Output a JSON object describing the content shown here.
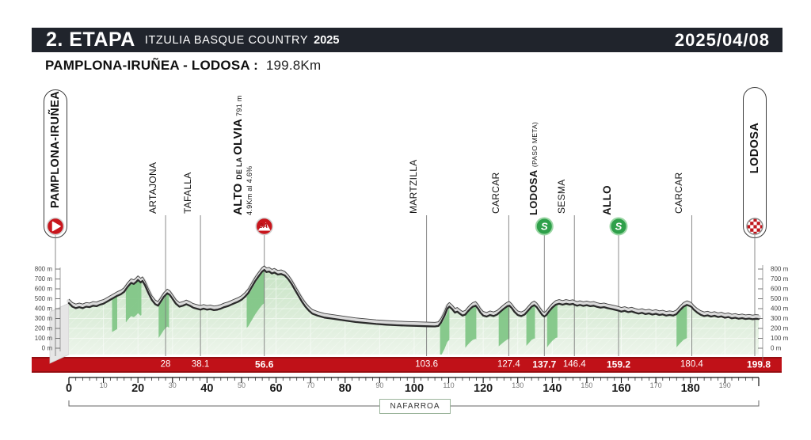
{
  "header": {
    "stage": "2. ETAPA",
    "race": "ITZULIA BASQUE COUNTRY",
    "year": "2025",
    "date": "2025/04/08"
  },
  "subtitle": {
    "route": "PAMPLONA-IRUÑEA  -  LODOSA :",
    "distance": "199.8Km"
  },
  "start": {
    "name": "PAMPLONA-IRUÑEA",
    "icon": "start-play-icon"
  },
  "finish": {
    "name": "LODOSA",
    "icon": "finish-checkered-icon"
  },
  "region_label": "NAFARROA",
  "colors": {
    "header_bg": "#20242c",
    "accent_red": "#c01118",
    "bar_border_red": "#950d12",
    "profile_fill_top": "#c7e3c4",
    "profile_fill_bottom": "#edf5eb",
    "steep_fill": "#82c687",
    "road_dark": "#2b2b2b",
    "road_band": "#dadada",
    "sprint_green": "#2fa04a",
    "climb_red": "#c8151c"
  },
  "chart_data": {
    "type": "area",
    "title": "Stage 2 elevation profile",
    "x_unit": "km",
    "y_unit": "m",
    "xlim": [
      0,
      199.8
    ],
    "ylim": [
      0,
      800
    ],
    "y_ticks": [
      0,
      100,
      200,
      300,
      400,
      500,
      600,
      700,
      800
    ],
    "x_major_ticks": [
      0,
      20,
      40,
      60,
      80,
      100,
      120,
      140,
      160,
      180
    ],
    "x_minor_ticks": [
      10,
      30,
      50,
      70,
      90,
      110,
      130,
      150,
      170,
      190
    ],
    "grid": true,
    "waypoints": [
      {
        "km": 28,
        "km_label": "28",
        "name": "ARTAJONA",
        "bold": false,
        "icon": "none",
        "label": true
      },
      {
        "km": 38.1,
        "km_label": "38.1",
        "name": "TAFALLA",
        "bold": false,
        "icon": "none",
        "label": true
      },
      {
        "km": 56.6,
        "km_label": "56.6",
        "name": "ALTO DE LA OLVIA",
        "altitude": "791 m",
        "detail": "4.9Km al 4.6%",
        "bold": true,
        "icon": "climb-cat3A",
        "label": true,
        "parts": [
          {
            "t": "ALTO ",
            "s": 15,
            "b": true
          },
          {
            "t": "DE LA ",
            "s": 9,
            "b": true
          },
          {
            "t": "OLVIA",
            "s": 15,
            "b": true
          },
          {
            "t": " 791 m",
            "s": 9,
            "b": false
          }
        ],
        "line2": "4.9Km al 4.6%"
      },
      {
        "km": 103.6,
        "km_label": "103.6",
        "name": "MARTZILLA",
        "bold": false,
        "icon": "none",
        "label": true
      },
      {
        "km": 127.4,
        "km_label": "127.4",
        "name": "CARCAR",
        "bold": false,
        "icon": "none",
        "label": true
      },
      {
        "km": 137.7,
        "km_label": "137.7",
        "name": "LODOSA",
        "suffix": "(PASO META)",
        "bold": true,
        "icon": "sprint",
        "label": true,
        "parts": [
          {
            "t": "LODOSA ",
            "s": 13,
            "b": true
          },
          {
            "t": "(PASO META)",
            "s": 8.5,
            "b": false
          }
        ]
      },
      {
        "km": 146.4,
        "km_label": "146.4",
        "name": "SESMA",
        "bold": false,
        "icon": "none",
        "label": true
      },
      {
        "km": 159.2,
        "km_label": "159.2",
        "name": "ALLO",
        "bold": true,
        "icon": "sprint",
        "label": true
      },
      {
        "km": 180.4,
        "km_label": "180.4",
        "name": "CARCAR",
        "bold": false,
        "icon": "none",
        "label": true
      },
      {
        "km": 199.8,
        "km_label": "199.8",
        "name": "LODOSA",
        "bold": true,
        "icon": "finish",
        "label": false
      }
    ],
    "steep_segments": [
      [
        12.5,
        14
      ],
      [
        16.5,
        21
      ],
      [
        26,
        29
      ],
      [
        51.5,
        56.6
      ],
      [
        107.5,
        110.2
      ],
      [
        114.8,
        118
      ],
      [
        124.5,
        127.6
      ],
      [
        132.5,
        135
      ],
      [
        138.5,
        141.5
      ],
      [
        176,
        179
      ]
    ],
    "elevation_profile": [
      [
        0,
        455
      ],
      [
        1,
        420
      ],
      [
        2,
        405
      ],
      [
        3,
        415
      ],
      [
        4,
        405
      ],
      [
        5,
        420
      ],
      [
        6,
        415
      ],
      [
        7,
        430
      ],
      [
        8,
        425
      ],
      [
        9,
        440
      ],
      [
        10,
        450
      ],
      [
        11,
        470
      ],
      [
        12,
        490
      ],
      [
        13,
        510
      ],
      [
        14,
        530
      ],
      [
        15,
        545
      ],
      [
        16,
        570
      ],
      [
        17,
        620
      ],
      [
        18,
        660
      ],
      [
        18.8,
        650
      ],
      [
        19.5,
        670
      ],
      [
        20,
        690
      ],
      [
        20.8,
        665
      ],
      [
        21.3,
        680
      ],
      [
        22,
        640
      ],
      [
        23,
        560
      ],
      [
        24,
        490
      ],
      [
        25,
        445
      ],
      [
        25.8,
        430
      ],
      [
        26.5,
        465
      ],
      [
        27.5,
        520
      ],
      [
        28.5,
        555
      ],
      [
        29.2,
        540
      ],
      [
        30,
        500
      ],
      [
        31,
        450
      ],
      [
        32,
        420
      ],
      [
        33,
        430
      ],
      [
        34,
        445
      ],
      [
        35,
        430
      ],
      [
        36,
        410
      ],
      [
        37,
        400
      ],
      [
        38.1,
        390
      ],
      [
        39,
        400
      ],
      [
        40,
        390
      ],
      [
        41,
        395
      ],
      [
        42,
        385
      ],
      [
        43,
        390
      ],
      [
        44,
        400
      ],
      [
        45,
        415
      ],
      [
        46,
        425
      ],
      [
        47,
        440
      ],
      [
        48,
        455
      ],
      [
        49,
        470
      ],
      [
        50,
        490
      ],
      [
        51,
        520
      ],
      [
        52,
        560
      ],
      [
        53,
        620
      ],
      [
        54,
        680
      ],
      [
        55,
        730
      ],
      [
        56,
        775
      ],
      [
        56.6,
        791
      ],
      [
        57.2,
        770
      ],
      [
        58,
        775
      ],
      [
        58.8,
        755
      ],
      [
        59.5,
        765
      ],
      [
        60.5,
        745
      ],
      [
        61.5,
        750
      ],
      [
        62.5,
        735
      ],
      [
        63.5,
        700
      ],
      [
        64.5,
        650
      ],
      [
        65.5,
        590
      ],
      [
        66.5,
        530
      ],
      [
        67.5,
        470
      ],
      [
        68.5,
        420
      ],
      [
        69.5,
        380
      ],
      [
        70.5,
        350
      ],
      [
        72,
        330
      ],
      [
        74,
        310
      ],
      [
        76,
        300
      ],
      [
        78,
        290
      ],
      [
        80,
        280
      ],
      [
        83,
        265
      ],
      [
        86,
        255
      ],
      [
        89,
        245
      ],
      [
        92,
        238
      ],
      [
        95,
        232
      ],
      [
        98,
        228
      ],
      [
        101,
        225
      ],
      [
        104,
        222
      ],
      [
        106,
        220
      ],
      [
        107,
        225
      ],
      [
        107.8,
        260
      ],
      [
        108.8,
        330
      ],
      [
        109.6,
        400
      ],
      [
        110.2,
        420
      ],
      [
        111,
        395
      ],
      [
        111.8,
        360
      ],
      [
        112.5,
        370
      ],
      [
        113.2,
        350
      ],
      [
        114,
        330
      ],
      [
        114.8,
        340
      ],
      [
        115.5,
        370
      ],
      [
        116.3,
        400
      ],
      [
        117,
        420
      ],
      [
        117.8,
        430
      ],
      [
        118.5,
        400
      ],
      [
        119.2,
        360
      ],
      [
        120,
        330
      ],
      [
        121,
        320
      ],
      [
        122,
        335
      ],
      [
        123,
        325
      ],
      [
        124,
        340
      ],
      [
        125,
        370
      ],
      [
        126,
        400
      ],
      [
        127,
        425
      ],
      [
        127.6,
        430
      ],
      [
        128.3,
        405
      ],
      [
        129,
        370
      ],
      [
        130,
        335
      ],
      [
        131,
        325
      ],
      [
        132,
        340
      ],
      [
        133,
        380
      ],
      [
        134,
        420
      ],
      [
        134.8,
        435
      ],
      [
        135.5,
        415
      ],
      [
        136.3,
        375
      ],
      [
        137.1,
        335
      ],
      [
        137.7,
        320
      ],
      [
        138.3,
        335
      ],
      [
        139,
        370
      ],
      [
        140,
        410
      ],
      [
        141,
        440
      ],
      [
        142,
        450
      ],
      [
        143,
        440
      ],
      [
        144,
        450
      ],
      [
        145,
        442
      ],
      [
        146,
        448
      ],
      [
        146.4,
        440
      ],
      [
        147.2,
        430
      ],
      [
        148,
        438
      ],
      [
        149,
        428
      ],
      [
        150,
        435
      ],
      [
        151,
        425
      ],
      [
        152,
        430
      ],
      [
        153,
        418
      ],
      [
        154,
        410
      ],
      [
        155,
        415
      ],
      [
        156,
        405
      ],
      [
        157,
        398
      ],
      [
        158,
        390
      ],
      [
        159.2,
        380
      ],
      [
        160,
        370
      ],
      [
        161,
        378
      ],
      [
        162,
        365
      ],
      [
        163,
        372
      ],
      [
        164,
        360
      ],
      [
        165,
        350
      ],
      [
        166,
        358
      ],
      [
        167,
        345
      ],
      [
        168,
        352
      ],
      [
        169,
        340
      ],
      [
        170,
        348
      ],
      [
        171,
        336
      ],
      [
        172,
        342
      ],
      [
        173,
        330
      ],
      [
        174,
        336
      ],
      [
        175,
        330
      ],
      [
        176,
        345
      ],
      [
        177,
        385
      ],
      [
        178,
        420
      ],
      [
        179,
        438
      ],
      [
        180,
        425
      ],
      [
        180.4,
        415
      ],
      [
        181,
        390
      ],
      [
        182,
        360
      ],
      [
        183,
        338
      ],
      [
        184,
        325
      ],
      [
        185,
        332
      ],
      [
        186,
        320
      ],
      [
        187,
        328
      ],
      [
        188,
        315
      ],
      [
        189,
        322
      ],
      [
        190,
        308
      ],
      [
        191,
        315
      ],
      [
        192,
        302
      ],
      [
        193,
        308
      ],
      [
        194,
        298
      ],
      [
        195,
        304
      ],
      [
        196,
        295
      ],
      [
        197,
        300
      ],
      [
        198,
        293
      ],
      [
        199,
        298
      ],
      [
        199.8,
        295
      ]
    ]
  }
}
